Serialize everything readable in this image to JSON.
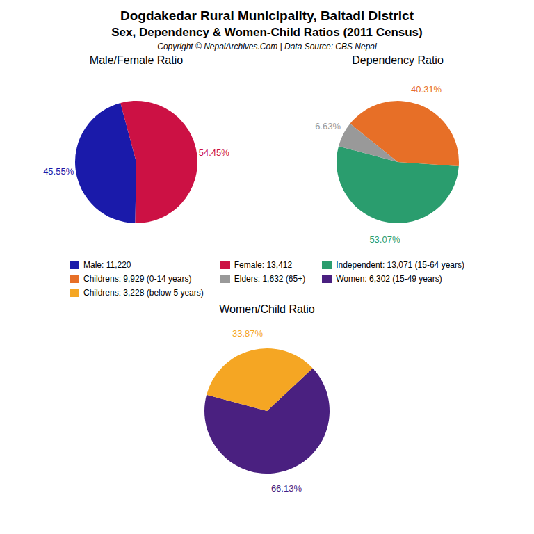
{
  "title": "Dogdakedar Rural Municipality, Baitadi District",
  "subtitle": "Sex, Dependency & Women-Child Ratios (2011 Census)",
  "annotations": [
    "Copyright © NepalArchives.Com | Data Source: CBS Nepal"
  ],
  "chart_data": [
    {
      "type": "pie",
      "title": "Male/Female Ratio",
      "categories": [
        "Male: 11,220",
        "Female: 13,412"
      ],
      "values": [
        45.55,
        54.45
      ],
      "value_labels": [
        "45.55%",
        "54.45%"
      ],
      "colors": [
        "#1a1aaa",
        "#cc1144"
      ],
      "data_labels": true
    },
    {
      "type": "pie",
      "title": "Dependency Ratio",
      "categories": [
        "Independent: 13,071 (15-64 years)",
        "Childrens: 9,929 (0-14 years)",
        "Elders: 1,632 (65+)"
      ],
      "values": [
        53.07,
        40.31,
        6.63
      ],
      "value_labels": [
        "53.07%",
        "40.31%",
        "6.63%"
      ],
      "colors": [
        "#2a9d6e",
        "#e76f27",
        "#999999"
      ],
      "data_labels": true
    },
    {
      "type": "pie",
      "title": "Women/Child Ratio",
      "categories": [
        "Women: 6,302 (15-49 years)",
        "Childrens: 3,228 (below 5 years)"
      ],
      "values": [
        66.13,
        33.87
      ],
      "value_labels": [
        "66.13%",
        "33.87%"
      ],
      "colors": [
        "#4a2080",
        "#f5a623"
      ],
      "data_labels": true
    }
  ]
}
